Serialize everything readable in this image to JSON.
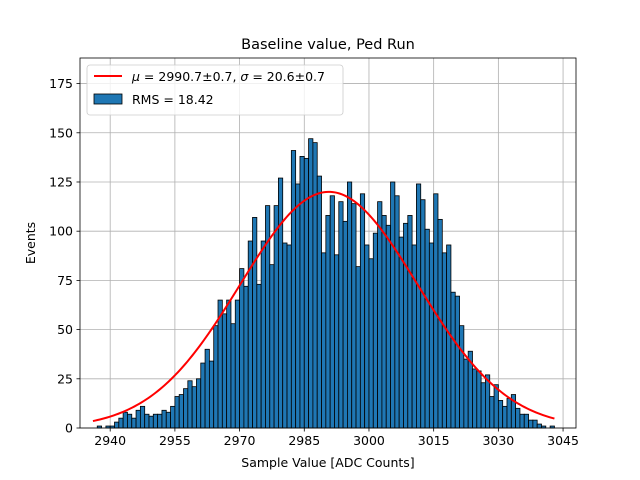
{
  "chart_data": {
    "type": "bar",
    "title": "Baseline value, Ped Run",
    "xlabel": "Sample Value [ADC Counts]",
    "ylabel": "Events",
    "xlim": [
      2933,
      3048
    ],
    "ylim": [
      0,
      188
    ],
    "xticks": [
      2940,
      2955,
      2970,
      2985,
      3000,
      3015,
      3030,
      3045
    ],
    "yticks": [
      0,
      25,
      50,
      75,
      100,
      125,
      150,
      175
    ],
    "grid": true,
    "legend_position": "top-left",
    "bin_width": 1,
    "series": [
      {
        "name": "RMS = 18.42",
        "kind": "histogram",
        "color": "#1f77b4",
        "edgecolor": "#000000",
        "x": [
          2937,
          2938,
          2939,
          2940,
          2941,
          2942,
          2943,
          2944,
          2945,
          2946,
          2947,
          2948,
          2949,
          2950,
          2951,
          2952,
          2953,
          2954,
          2955,
          2956,
          2957,
          2958,
          2959,
          2960,
          2961,
          2962,
          2963,
          2964,
          2965,
          2966,
          2967,
          2968,
          2969,
          2970,
          2971,
          2972,
          2973,
          2974,
          2975,
          2976,
          2977,
          2978,
          2979,
          2980,
          2981,
          2982,
          2983,
          2984,
          2985,
          2986,
          2987,
          2988,
          2989,
          2990,
          2991,
          2992,
          2993,
          2994,
          2995,
          2996,
          2997,
          2998,
          2999,
          3000,
          3001,
          3002,
          3003,
          3004,
          3005,
          3006,
          3007,
          3008,
          3009,
          3010,
          3011,
          3012,
          3013,
          3014,
          3015,
          3016,
          3017,
          3018,
          3019,
          3020,
          3021,
          3022,
          3023,
          3024,
          3025,
          3026,
          3027,
          3028,
          3029,
          3030,
          3031,
          3032,
          3033,
          3034,
          3035,
          3036,
          3037,
          3038,
          3039,
          3040,
          3041,
          3042
        ],
        "values": [
          1,
          0,
          1,
          1,
          3,
          5,
          8,
          7,
          5,
          9,
          11,
          7,
          6,
          7,
          7,
          9,
          8,
          11,
          16,
          17,
          20,
          24,
          21,
          25,
          33,
          40,
          34,
          52,
          65,
          58,
          65,
          53,
          65,
          81,
          72,
          95,
          107,
          73,
          95,
          113,
          83,
          113,
          127,
          94,
          93,
          141,
          124,
          138,
          137,
          147,
          145,
          128,
          89,
          108,
          118,
          88,
          115,
          105,
          125,
          114,
          82,
          119,
          93,
          86,
          99,
          115,
          108,
          103,
          125,
          118,
          97,
          104,
          108,
          93,
          124,
          116,
          101,
          94,
          119,
          106,
          89,
          93,
          69,
          67,
          52,
          35,
          39,
          30,
          29,
          23,
          27,
          16,
          22,
          14,
          11,
          15,
          17,
          10,
          7,
          7,
          4,
          4,
          2,
          1,
          0,
          1
        ]
      },
      {
        "name": "$\\mu=2990.7\\pm0.7$, $\\sigma=20.6\\pm0.7$",
        "kind": "gaussian_fit",
        "color": "#ff0000",
        "mu": 2990.7,
        "sigma": 20.6,
        "amplitude": 120,
        "x_range": [
          2936,
          3043
        ]
      }
    ]
  }
}
